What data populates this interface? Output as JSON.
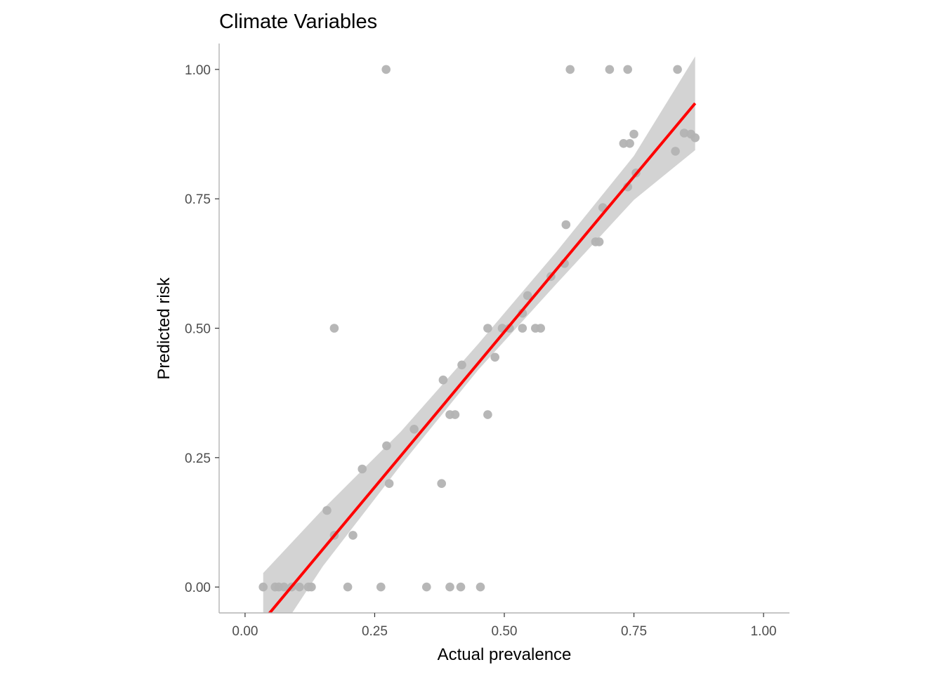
{
  "chart_data": {
    "type": "scatter",
    "title": "Climate Variables",
    "xlabel": "Actual prevalence",
    "ylabel": "Predicted risk",
    "xlim": [
      -0.05,
      1.05
    ],
    "ylim": [
      -0.05,
      1.05
    ],
    "x_ticks": [
      0,
      0.25,
      0.5,
      0.75,
      1
    ],
    "y_ticks": [
      0,
      0.25,
      0.5,
      0.75,
      1
    ],
    "x_tick_labels": [
      "0.00",
      "0.25",
      "0.50",
      "0.75",
      "1.00"
    ],
    "y_tick_labels": [
      "0.00",
      "0.25",
      "0.50",
      "0.75",
      "1.00"
    ],
    "grid": false,
    "colors": {
      "points": "#b3b3b3",
      "fit_line": "#ff0000",
      "confidence_band": "#d3d3d3",
      "axis": "#b3b3b3"
    },
    "points": [
      {
        "x": 0.035,
        "y": 0
      },
      {
        "x": 0.058,
        "y": 0
      },
      {
        "x": 0.065,
        "y": 0
      },
      {
        "x": 0.075,
        "y": 0
      },
      {
        "x": 0.09,
        "y": 0
      },
      {
        "x": 0.105,
        "y": 0
      },
      {
        "x": 0.122,
        "y": 0
      },
      {
        "x": 0.128,
        "y": 0
      },
      {
        "x": 0.198,
        "y": 0
      },
      {
        "x": 0.262,
        "y": 0
      },
      {
        "x": 0.35,
        "y": 0
      },
      {
        "x": 0.395,
        "y": 0
      },
      {
        "x": 0.416,
        "y": 0
      },
      {
        "x": 0.454,
        "y": 0
      },
      {
        "x": 0.172,
        "y": 0.1
      },
      {
        "x": 0.208,
        "y": 0.1
      },
      {
        "x": 0.158,
        "y": 0.148
      },
      {
        "x": 0.278,
        "y": 0.2
      },
      {
        "x": 0.379,
        "y": 0.2
      },
      {
        "x": 0.226,
        "y": 0.228
      },
      {
        "x": 0.273,
        "y": 0.273
      },
      {
        "x": 0.326,
        "y": 0.305
      },
      {
        "x": 0.395,
        "y": 0.333
      },
      {
        "x": 0.405,
        "y": 0.333
      },
      {
        "x": 0.468,
        "y": 0.333
      },
      {
        "x": 0.382,
        "y": 0.4
      },
      {
        "x": 0.418,
        "y": 0.429
      },
      {
        "x": 0.482,
        "y": 0.444
      },
      {
        "x": 0.468,
        "y": 0.5
      },
      {
        "x": 0.496,
        "y": 0.5
      },
      {
        "x": 0.51,
        "y": 0.5
      },
      {
        "x": 0.535,
        "y": 0.5
      },
      {
        "x": 0.56,
        "y": 0.5
      },
      {
        "x": 0.57,
        "y": 0.5
      },
      {
        "x": 0.172,
        "y": 0.5
      },
      {
        "x": 0.535,
        "y": 0.529
      },
      {
        "x": 0.545,
        "y": 0.563
      },
      {
        "x": 0.59,
        "y": 0.6
      },
      {
        "x": 0.616,
        "y": 0.625
      },
      {
        "x": 0.676,
        "y": 0.667
      },
      {
        "x": 0.683,
        "y": 0.667
      },
      {
        "x": 0.619,
        "y": 0.7
      },
      {
        "x": 0.69,
        "y": 0.733
      },
      {
        "x": 0.738,
        "y": 0.773
      },
      {
        "x": 0.754,
        "y": 0.8
      },
      {
        "x": 0.83,
        "y": 0.842
      },
      {
        "x": 0.73,
        "y": 0.857
      },
      {
        "x": 0.742,
        "y": 0.857
      },
      {
        "x": 0.868,
        "y": 0.868
      },
      {
        "x": 0.75,
        "y": 0.875
      },
      {
        "x": 0.847,
        "y": 0.877
      },
      {
        "x": 0.86,
        "y": 0.875
      },
      {
        "x": 0.272,
        "y": 1
      },
      {
        "x": 0.627,
        "y": 1
      },
      {
        "x": 0.703,
        "y": 1
      },
      {
        "x": 0.738,
        "y": 1
      },
      {
        "x": 0.834,
        "y": 1
      }
    ],
    "fit_line": {
      "intercept": -0.107,
      "slope": 1.2,
      "x_range": [
        0.035,
        0.868
      ]
    },
    "confidence_band": [
      {
        "x": 0.035,
        "lower": -0.135,
        "upper": 0.027
      },
      {
        "x": 0.15,
        "lower": 0.04,
        "upper": 0.15
      },
      {
        "x": 0.3,
        "lower": 0.235,
        "upper": 0.3
      },
      {
        "x": 0.45,
        "lower": 0.42,
        "upper": 0.47
      },
      {
        "x": 0.6,
        "lower": 0.585,
        "upper": 0.647
      },
      {
        "x": 0.75,
        "lower": 0.748,
        "upper": 0.833
      },
      {
        "x": 0.868,
        "lower": 0.844,
        "upper": 1.025
      }
    ]
  }
}
